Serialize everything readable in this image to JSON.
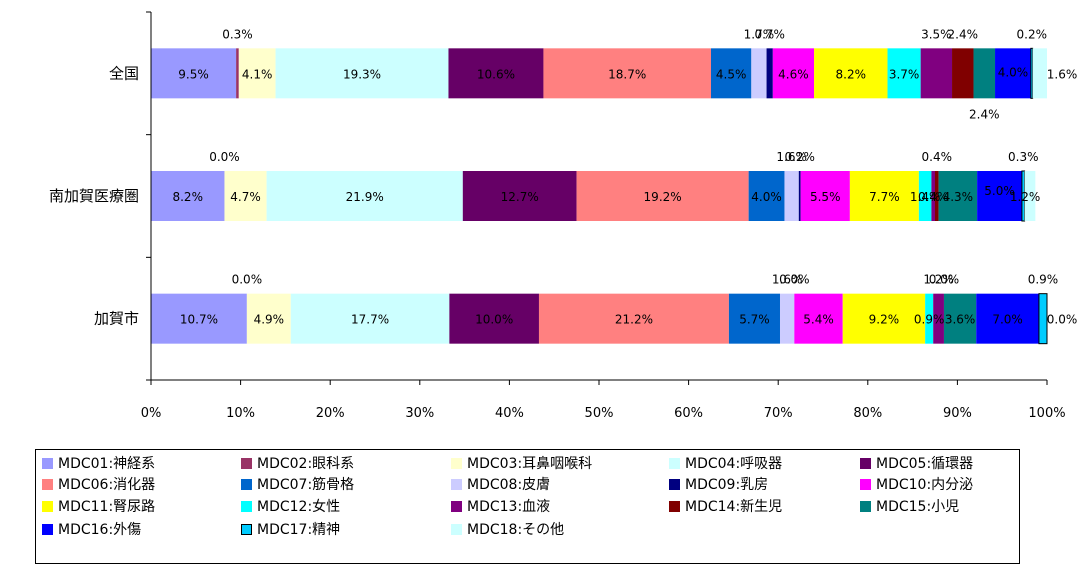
{
  "chart_data": {
    "type": "bar",
    "orientation": "horizontal",
    "stacked": "percent",
    "categories": [
      "全国",
      "南加賀医療圏",
      "加賀市"
    ],
    "xlim": [
      0,
      100
    ],
    "xticks": [
      "0%",
      "10%",
      "20%",
      "30%",
      "40%",
      "50%",
      "60%",
      "70%",
      "80%",
      "90%",
      "100%"
    ],
    "legend_position": "bottom",
    "series": [
      {
        "name": "MDC01:神経系",
        "color": "#9999ff",
        "values": [
          9.5,
          8.2,
          10.7
        ],
        "labels": [
          "9.5%",
          "8.2%",
          "10.7%"
        ]
      },
      {
        "name": "MDC02:眼科系",
        "color": "#993366",
        "values": [
          0.3,
          0.0,
          0.0
        ],
        "labels": [
          "0.3%",
          "0.0%",
          "0.0%"
        ]
      },
      {
        "name": "MDC03:耳鼻咽喉科",
        "color": "#ffffcc",
        "values": [
          4.1,
          4.7,
          4.9
        ],
        "labels": [
          "4.1%",
          "4.7%",
          "4.9%"
        ]
      },
      {
        "name": "MDC04:呼吸器",
        "color": "#ccffff",
        "values": [
          19.3,
          21.9,
          17.7
        ],
        "labels": [
          "19.3%",
          "21.9%",
          "17.7%"
        ]
      },
      {
        "name": "MDC05:循環器",
        "color": "#660066",
        "values": [
          10.6,
          12.7,
          10.0
        ],
        "labels": [
          "10.6%",
          "12.7%",
          "10.0%"
        ]
      },
      {
        "name": "MDC06:消化器",
        "color": "#ff8080",
        "values": [
          18.7,
          19.2,
          21.2
        ],
        "labels": [
          "18.7%",
          "19.2%",
          "21.2%"
        ]
      },
      {
        "name": "MDC07:筋骨格",
        "color": "#0066cc",
        "values": [
          4.5,
          4.0,
          5.7
        ],
        "labels": [
          "4.5%",
          "4.0%",
          "5.7%"
        ]
      },
      {
        "name": "MDC08:皮膚",
        "color": "#ccccff",
        "values": [
          1.7,
          1.6,
          1.6
        ],
        "labels": [
          "1.7%",
          "1.6%",
          "1.6%"
        ]
      },
      {
        "name": "MDC09:乳房",
        "color": "#000080",
        "values": [
          0.7,
          0.2,
          0.0
        ],
        "labels": [
          "0.7%",
          "0.2%",
          "0.0%"
        ]
      },
      {
        "name": "MDC10:内分泌",
        "color": "#ff00ff",
        "values": [
          4.6,
          5.5,
          5.4
        ],
        "labels": [
          "4.6%",
          "5.5%",
          "5.4%"
        ]
      },
      {
        "name": "MDC11:腎尿路",
        "color": "#ffff00",
        "values": [
          8.2,
          7.7,
          9.2
        ],
        "labels": [
          "8.2%",
          "7.7%",
          "9.2%"
        ]
      },
      {
        "name": "MDC12:女性",
        "color": "#00ffff",
        "values": [
          3.7,
          1.4,
          0.9
        ],
        "labels": [
          "3.7%",
          "1.4%",
          "0.9%"
        ]
      },
      {
        "name": "MDC13:血液",
        "color": "#800080",
        "values": [
          3.5,
          0.4,
          1.2
        ],
        "labels": [
          "3.5%",
          "0.4%",
          "1.2%"
        ]
      },
      {
        "name": "MDC14:新生児",
        "color": "#800000",
        "values": [
          2.4,
          0.4,
          0.0
        ],
        "labels": [
          "2.4%",
          "0.4%",
          "0.0%"
        ]
      },
      {
        "name": "MDC15:小児",
        "color": "#008080",
        "values": [
          2.4,
          4.3,
          3.6
        ],
        "labels": [
          "2.4%",
          "4.3%",
          "3.6%"
        ]
      },
      {
        "name": "MDC16:外傷",
        "color": "#0000ff",
        "values": [
          4.0,
          5.0,
          7.0
        ],
        "labels": [
          "4.0%",
          "5.0%",
          "7.0%"
        ]
      },
      {
        "name": "MDC17:精神",
        "color": "#00ccff",
        "values": [
          0.2,
          0.3,
          0.9
        ],
        "labels": [
          "0.2%",
          "0.3%",
          "0.9%"
        ]
      },
      {
        "name": "MDC18:その他",
        "color": "#ccffff",
        "values": [
          1.6,
          1.2,
          0.0
        ],
        "labels": [
          "1.6%",
          "1.2%",
          "0.0%"
        ]
      }
    ]
  }
}
